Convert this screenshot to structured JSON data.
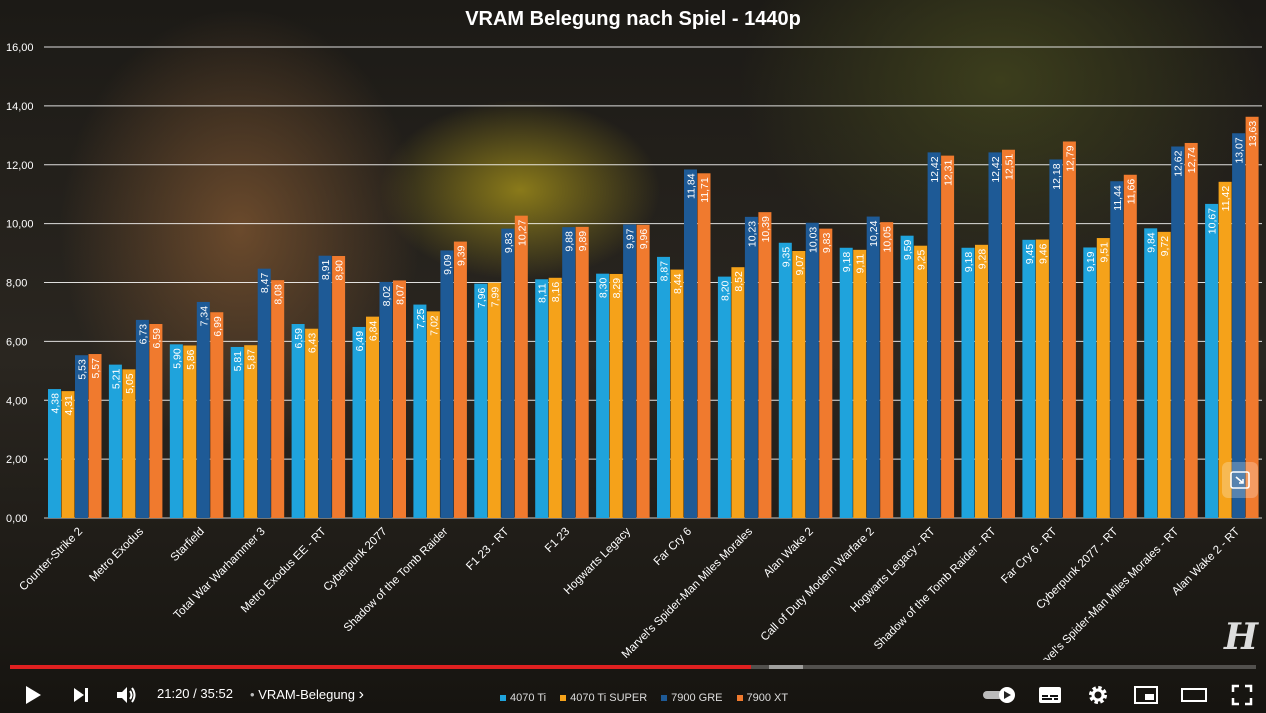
{
  "chart_data": {
    "type": "bar",
    "title": "VRAM Belegung nach Spiel - 1440p",
    "ylim": [
      0,
      16
    ],
    "yticks": [
      "0,00",
      "2,00",
      "4,00",
      "6,00",
      "8,00",
      "10,00",
      "12,00",
      "14,00",
      "16,00"
    ],
    "grid": true,
    "legend_position": "bottom",
    "categories": [
      "Counter-Strike 2",
      "Metro Exodus",
      "Starfield",
      "Total War Warhammer 3",
      "Metro Exodus EE - RT",
      "Cyberpunk 2077",
      "Shadow of the Tomb Raider",
      "F1 23 - RT",
      "F1 23",
      "Hogwarts Legacy",
      "Far Cry 6",
      "Marvel's Spider-Man Miles Morales",
      "Alan Wake 2",
      "Call of Duty Modern Warfare 2",
      "Hogwarts Legacy - RT",
      "Shadow of the Tomb Raider - RT",
      "Far Cry 6 - RT",
      "Cyberpunk 2077 - RT",
      "Marvel's Spider-Man Miles Morales - RT",
      "Alan Wake 2 - RT"
    ],
    "series": [
      {
        "name": "4070 Ti",
        "color": "#1fa3dc",
        "values": [
          4.38,
          5.21,
          5.9,
          5.81,
          6.59,
          6.49,
          7.25,
          7.96,
          8.11,
          8.3,
          8.87,
          8.2,
          9.35,
          9.18,
          9.59,
          9.18,
          9.45,
          9.19,
          9.84,
          10.67
        ],
        "labels": [
          "4,38",
          "5,21",
          "5,90",
          "5,81",
          "6,59",
          "6,49",
          "7,25",
          "7,96",
          "8,11",
          "8,30",
          "8,87",
          "8,20",
          "9,35",
          "9,18",
          "9,59",
          "9,18",
          "9,45",
          "9,19",
          "9,84",
          "10,67"
        ]
      },
      {
        "name": "4070 Ti SUPER",
        "color": "#f5a21a",
        "values": [
          4.31,
          5.05,
          5.86,
          5.87,
          6.43,
          6.84,
          7.02,
          7.99,
          8.16,
          8.29,
          8.44,
          8.52,
          9.07,
          9.11,
          9.25,
          9.28,
          9.46,
          9.51,
          9.72,
          11.42
        ],
        "labels": [
          "4,31",
          "5,05",
          "5,86",
          "5,87",
          "6,43",
          "6,84",
          "7,02",
          "7,99",
          "8,16",
          "8,29",
          "8,44",
          "8,52",
          "9,07",
          "9,11",
          "9,25",
          "9,28",
          "9,46",
          "9,51",
          "9,72",
          "11,42"
        ]
      },
      {
        "name": "7900 GRE",
        "color": "#1e5a96",
        "values": [
          5.53,
          6.73,
          7.34,
          8.47,
          8.91,
          8.02,
          9.09,
          9.83,
          9.88,
          9.97,
          11.84,
          10.23,
          10.03,
          10.24,
          12.42,
          12.42,
          12.18,
          11.44,
          12.62,
          13.07
        ],
        "labels": [
          "5,53",
          "6,73",
          "7,34",
          "8,47",
          "8,91",
          "8,02",
          "9,09",
          "9,83",
          "9,88",
          "9,97",
          "11,84",
          "10,23",
          "10,03",
          "10,24",
          "12,42",
          "12,42",
          "12,18",
          "11,44",
          "12,62",
          "13,07"
        ]
      },
      {
        "name": "7900 XT",
        "color": "#f07a2e",
        "values": [
          5.57,
          6.59,
          6.99,
          8.08,
          8.9,
          8.07,
          9.39,
          10.27,
          9.89,
          9.96,
          11.71,
          10.39,
          9.83,
          10.05,
          12.31,
          12.51,
          12.79,
          11.66,
          12.74,
          13.63
        ],
        "labels": [
          "5,57",
          "6,59",
          "6,99",
          "8,08",
          "8,90",
          "8,07",
          "9,39",
          "10,27",
          "9,89",
          "9,96",
          "11,71",
          "10,39",
          "9,83",
          "10,05",
          "12,31",
          "12,51",
          "12,79",
          "11,66",
          "12,74",
          "13,63"
        ]
      }
    ]
  },
  "legend": {
    "items": [
      "4070 Ti",
      "4070 Ti SUPER",
      "7900 GRE",
      "7900 XT"
    ]
  },
  "player": {
    "time_current": "21:20",
    "time_separator": "/",
    "time_total": "35:52",
    "chapter": "VRAM-Belegung",
    "chapter_chevron": "›",
    "progress_fraction": 0.5947,
    "logo": "H"
  }
}
